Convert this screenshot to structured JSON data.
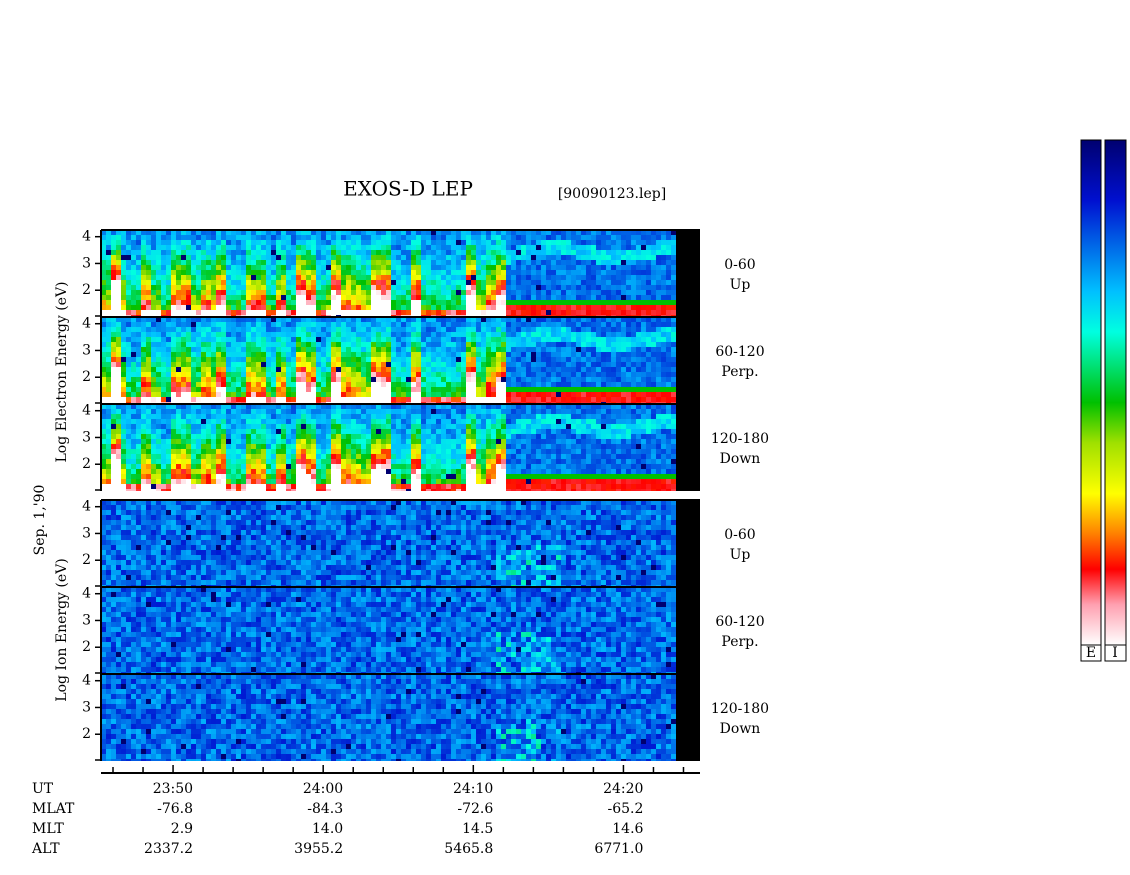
{
  "title": "EXOS-D LEP",
  "file": "[90090123.lep]",
  "date": "Sep. 1,'90",
  "electron_axis_label": "Log Electron Energy (eV)",
  "ion_axis_label": "Log Ion Energy (eV)",
  "panels": [
    {
      "angle": "0-60",
      "direction": "Up"
    },
    {
      "angle": "60-120",
      "direction": "Perp."
    },
    {
      "angle": "120-180",
      "direction": "Down"
    },
    {
      "angle": "0-60",
      "direction": "Up"
    },
    {
      "angle": "60-120",
      "direction": "Perp."
    },
    {
      "angle": "120-180",
      "direction": "Down"
    }
  ],
  "ylim": [
    1,
    4.25
  ],
  "yticks": [
    2,
    3,
    4
  ],
  "xlim": [
    1425.2,
    1465.1
  ],
  "xticks": [
    {
      "value": 1430,
      "label": "23:50"
    },
    {
      "value": 1440,
      "label": "24:00"
    },
    {
      "value": 1450,
      "label": "24:10"
    },
    {
      "value": 1460,
      "label": "24:20"
    }
  ],
  "xminorticks": [
    1426,
    1428,
    1432,
    1434,
    1436,
    1438,
    1442,
    1444,
    1446,
    1448,
    1452,
    1454,
    1456,
    1458,
    1462,
    1464
  ],
  "ephemeris": {
    "labels": [
      "UT",
      "MLAT",
      "MLT",
      "ALT"
    ],
    "rows": [
      [
        "-76.8",
        "-84.3",
        "-72.6",
        "-65.2"
      ],
      [
        "2.9",
        "14.0",
        "14.5",
        "14.6"
      ],
      [
        "2337.2",
        "3955.2",
        "5465.8",
        "6771.0"
      ]
    ]
  },
  "colorbar_labels": [
    "E",
    "I"
  ]
}
